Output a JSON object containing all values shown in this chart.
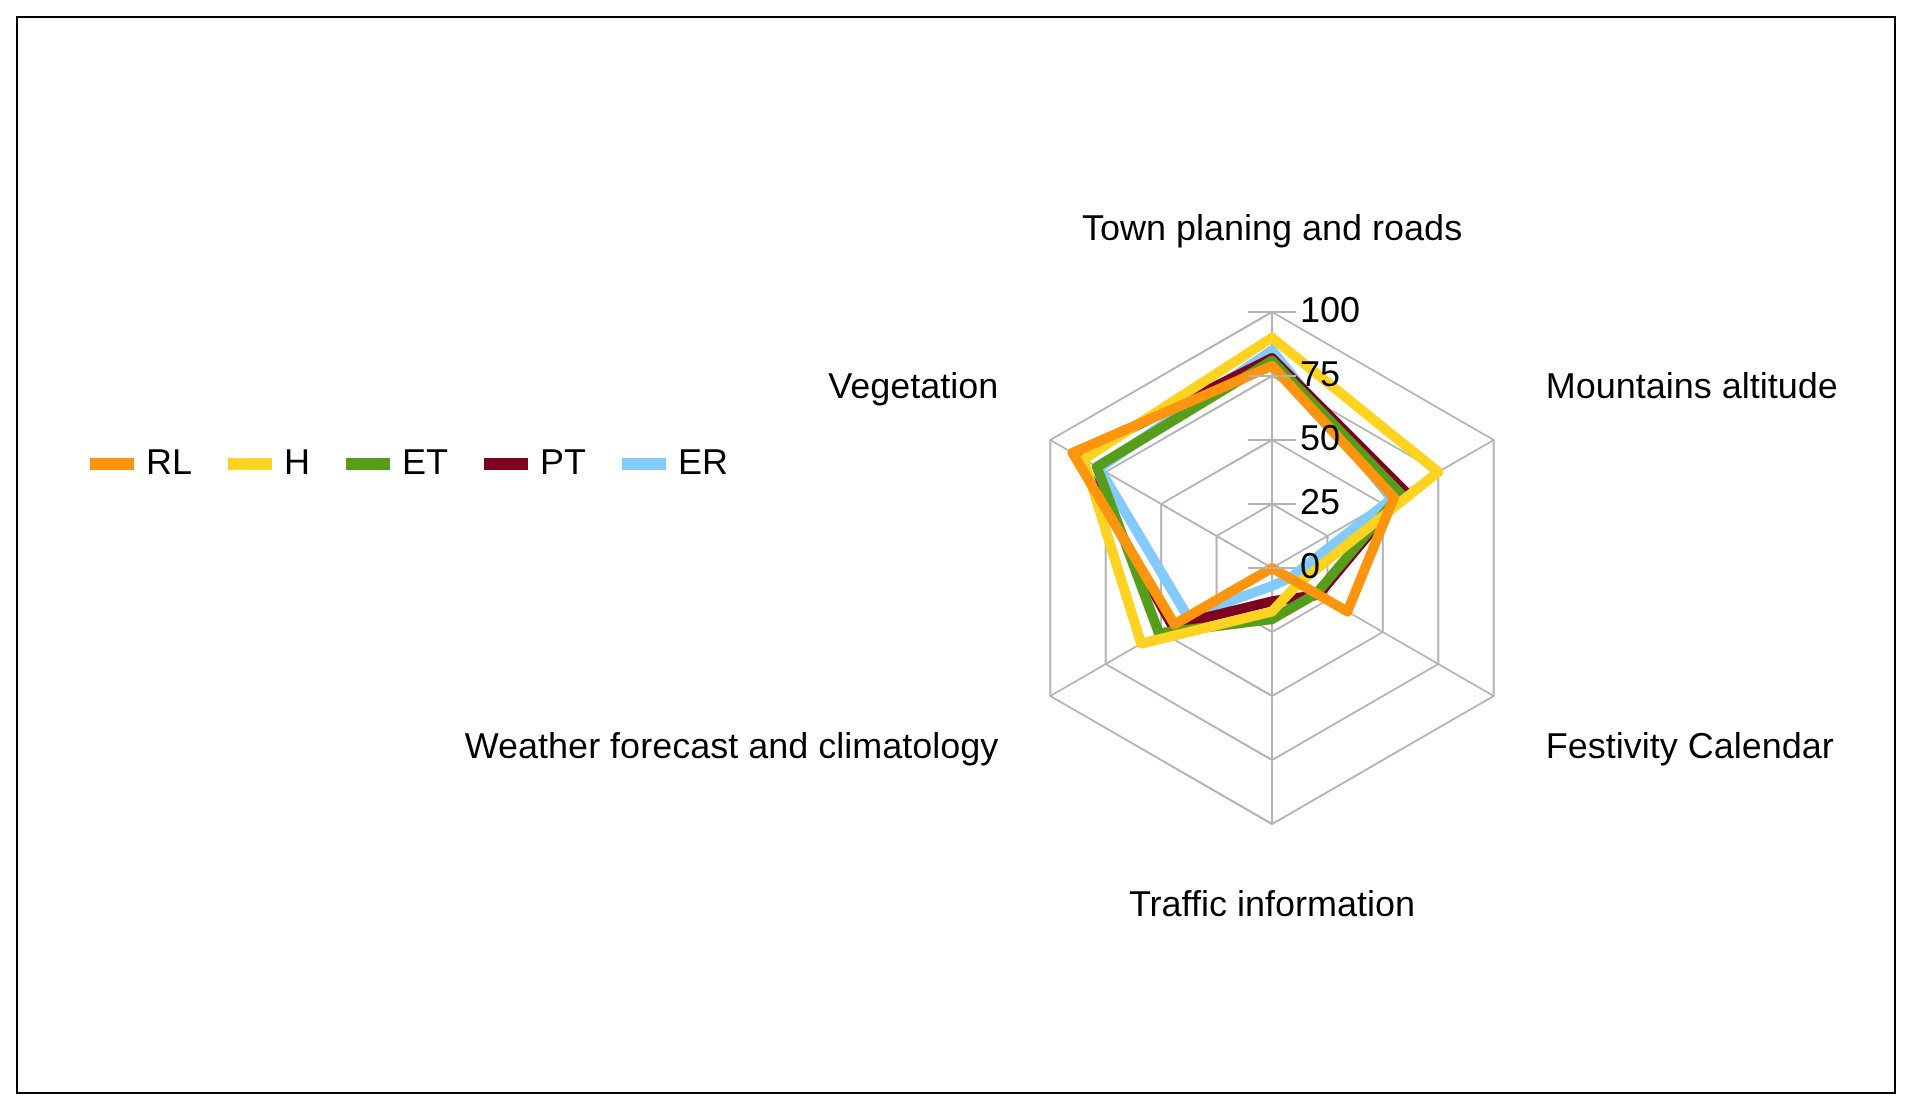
{
  "chart_data": {
    "type": "radar",
    "categories": [
      "Town planing and roads",
      "Mountains altitude",
      "Festivity Calendar",
      "Traffic information",
      "Weather forecast and climatology",
      "Vegetation"
    ],
    "series": [
      {
        "name": "RL",
        "color": "#ff950e",
        "values": [
          79,
          55,
          34,
          0,
          44,
          90
        ]
      },
      {
        "name": "H",
        "color": "#ffd320",
        "values": [
          90,
          75,
          12,
          17,
          59,
          85
        ]
      },
      {
        "name": "ET",
        "color": "#579d1c",
        "values": [
          81,
          58,
          20,
          20,
          51,
          79
        ]
      },
      {
        "name": "PT",
        "color": "#7e0021",
        "values": [
          82,
          60,
          21,
          13,
          45,
          88
        ]
      },
      {
        "name": "ER",
        "color": "#83caff",
        "values": [
          85,
          54,
          8,
          7,
          38,
          78
        ]
      }
    ],
    "ylim": [
      0,
      100
    ],
    "yticks": [
      0,
      25,
      50,
      75,
      100
    ],
    "grid": true,
    "legend": "left",
    "marker": "none"
  }
}
